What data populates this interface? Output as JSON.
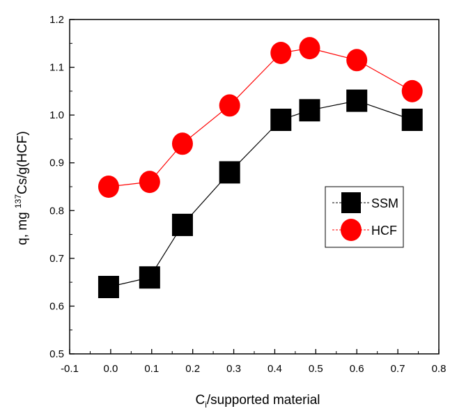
{
  "chart_data": {
    "type": "line",
    "xlabel_main": "C",
    "xlabel_sub": "i",
    "xlabel_rest": "/supported material",
    "ylabel_pre": "q, mg ",
    "ylabel_sup": "137",
    "ylabel_post": "Cs/g(HCF)",
    "xlim": [
      -0.1,
      0.8
    ],
    "ylim": [
      0.5,
      1.2
    ],
    "xticks": [
      -0.1,
      0.0,
      0.1,
      0.2,
      0.3,
      0.4,
      0.5,
      0.6,
      0.7,
      0.8
    ],
    "xtick_labels": [
      "-0.1",
      "0.0",
      "0.1",
      "0.2",
      "0.3",
      "0.4",
      "0.5",
      "0.6",
      "0.7",
      "0.8"
    ],
    "yticks": [
      0.5,
      0.6,
      0.7,
      0.8,
      0.9,
      1.0,
      1.1,
      1.2
    ],
    "ytick_labels": [
      "0.5",
      "0.6",
      "0.7",
      "0.8",
      "0.9",
      "1.0",
      "1.1",
      "1.2"
    ],
    "legend_position": "center-right",
    "series": [
      {
        "name": "SSM",
        "marker": "square",
        "color": "#000000",
        "line_color": "#000000",
        "x": [
          -0.005,
          0.095,
          0.175,
          0.29,
          0.415,
          0.485,
          0.6,
          0.735
        ],
        "y": [
          0.64,
          0.66,
          0.77,
          0.88,
          0.99,
          1.01,
          1.03,
          0.99
        ]
      },
      {
        "name": "HCF",
        "marker": "circle",
        "color": "#ff0000",
        "line_color": "#ff0000",
        "x": [
          -0.005,
          0.095,
          0.175,
          0.29,
          0.415,
          0.485,
          0.6,
          0.735
        ],
        "y": [
          0.85,
          0.86,
          0.94,
          1.02,
          1.13,
          1.14,
          1.115,
          1.05
        ]
      }
    ]
  }
}
